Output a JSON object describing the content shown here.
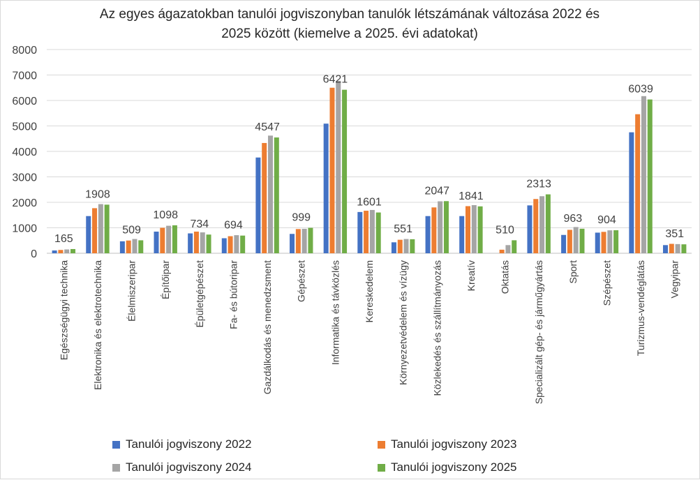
{
  "chart_data": {
    "type": "bar",
    "title": "Az egyes ágazatokban tanulói jogviszonyban tanulók létszámának változása 2022 és 2025 között (kiemelve a 2025. évi adatokat)",
    "title_lines": [
      "Az egyes ágazatokban tanulói jogviszonyban tanulók létszámának változása 2022 és",
      "2025 között (kiemelve a 2025. évi adatokat)"
    ],
    "xlabel": "",
    "ylabel": "",
    "ylim": [
      0,
      8000
    ],
    "yticks": [
      0,
      1000,
      2000,
      3000,
      4000,
      5000,
      6000,
      7000,
      8000
    ],
    "grid": true,
    "legend_position": "bottom",
    "categories": [
      "Egészségügyi technika",
      "Elektronika és elektrotechnika",
      "Élelmiszeripar",
      "Építőipar",
      "Épületgépészet",
      "Fa- és bútoripar",
      "Gazdálkodás és menedzsment",
      "Gépészet",
      "Informatika és távközlés",
      "Kereskedelem",
      "Környezetvédelem és vízügy",
      "Közlekedés és szállítmányozás",
      "Kreatív",
      "Oktatás",
      "Specializált gép- és járműgyártás",
      "Sport",
      "Szépészet",
      "Turizmus-vendéglátás",
      "Vegyipar"
    ],
    "series": [
      {
        "name": "Tanulói jogviszony 2022",
        "color": "#4472c4",
        "values": [
          110,
          1460,
          470,
          850,
          780,
          590,
          3760,
          760,
          5090,
          1620,
          430,
          1460,
          1460,
          0,
          1880,
          720,
          810,
          4750,
          320
        ]
      },
      {
        "name": "Tanulói jogviszony 2023",
        "color": "#ed7d31",
        "values": [
          130,
          1770,
          500,
          1000,
          850,
          670,
          4330,
          950,
          6500,
          1670,
          530,
          1800,
          1850,
          140,
          2130,
          920,
          840,
          5460,
          370
        ]
      },
      {
        "name": "Tanulói jogviszony 2024",
        "color": "#a5a5a5",
        "values": [
          150,
          1930,
          560,
          1080,
          820,
          710,
          4620,
          960,
          6770,
          1700,
          560,
          2040,
          1890,
          320,
          2240,
          1030,
          900,
          6170,
          360
        ]
      },
      {
        "name": "Tanulói jogviszony 2025",
        "color": "#70ad47",
        "values": [
          165,
          1908,
          509,
          1098,
          734,
          694,
          4547,
          999,
          6421,
          1601,
          551,
          2047,
          1841,
          510,
          2313,
          963,
          904,
          6039,
          351
        ]
      }
    ],
    "data_labels_series": 3,
    "data_labels": [
      "165",
      "1908",
      "509",
      "1098",
      "734",
      "694",
      "4547",
      "999",
      "6421",
      "1601",
      "551",
      "2047",
      "1841",
      "510",
      "2313",
      "963",
      "904",
      "6039",
      "351"
    ],
    "ytick_labels": [
      "0",
      "1000",
      "2000",
      "3000",
      "4000",
      "5000",
      "6000",
      "7000",
      "8000"
    ]
  }
}
